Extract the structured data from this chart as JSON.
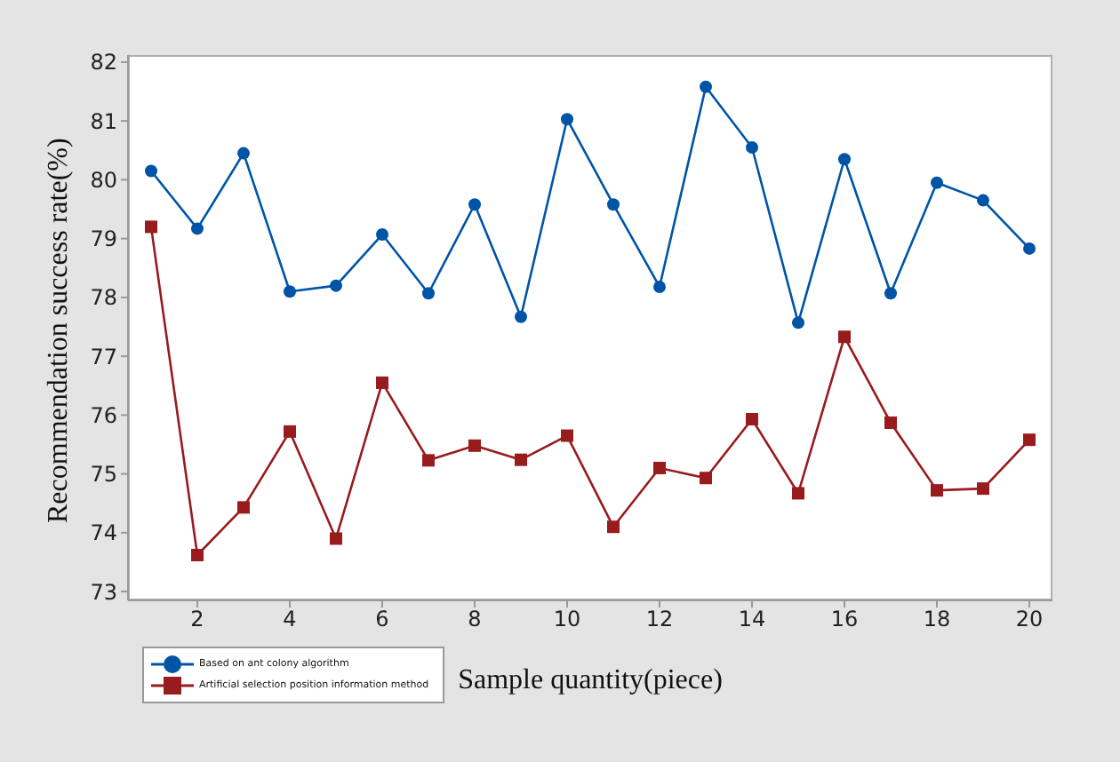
{
  "chart_data": {
    "type": "line",
    "xlabel": "Sample quantity(piece)",
    "ylabel": "Recommendation success rate(%)",
    "x": [
      1,
      2,
      3,
      4,
      5,
      6,
      7,
      8,
      9,
      10,
      11,
      12,
      13,
      14,
      15,
      16,
      17,
      18,
      19,
      20
    ],
    "series": [
      {
        "name": "Based on ant colony algorithm",
        "color": "#0054a6",
        "marker": "circle",
        "values": [
          80.15,
          79.17,
          80.45,
          78.1,
          78.2,
          79.07,
          78.07,
          79.58,
          77.67,
          81.03,
          79.58,
          78.18,
          81.58,
          80.55,
          77.57,
          80.35,
          78.07,
          79.95,
          79.65,
          78.83
        ]
      },
      {
        "name": "Artificial selection position information method",
        "color": "#981b1e",
        "marker": "square",
        "values": [
          79.2,
          73.62,
          74.43,
          75.72,
          73.9,
          76.55,
          75.23,
          75.48,
          75.24,
          75.65,
          74.1,
          75.1,
          74.93,
          75.93,
          74.67,
          77.33,
          75.87,
          74.72,
          74.75,
          75.58
        ]
      }
    ],
    "xlim": [
      0.5,
      20.5
    ],
    "xticks": [
      2,
      4,
      6,
      8,
      10,
      12,
      14,
      16,
      18,
      20
    ],
    "ylim": [
      72.85,
      82.12
    ],
    "yticks": [
      73,
      74,
      75,
      76,
      77,
      78,
      79,
      80,
      81,
      82
    ],
    "grid": false,
    "legend": "bottom left",
    "line_style": "solid"
  }
}
